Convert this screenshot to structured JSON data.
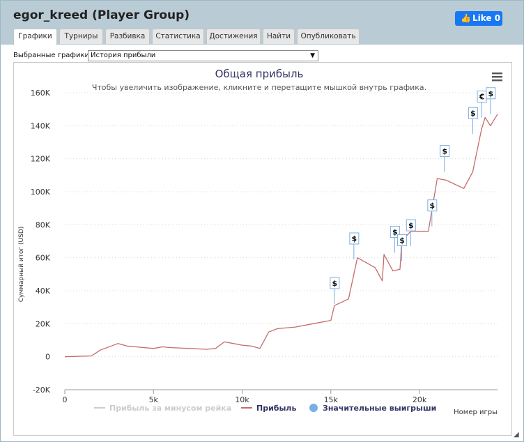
{
  "window": {
    "title": "egor_kreed (Player Group)",
    "like_label": "Like 0",
    "like_icon": "thumbs-up-icon",
    "brand_color": "#1877f2"
  },
  "tabs": [
    {
      "label": "Графики",
      "active": true
    },
    {
      "label": "Турниры"
    },
    {
      "label": "Разбивка"
    },
    {
      "label": "Статистика"
    },
    {
      "label": "Достижения"
    },
    {
      "label": "Найти"
    },
    {
      "label": "Опубликовать"
    }
  ],
  "selector": {
    "label": "Выбранные графики:",
    "value": "История прибыли"
  },
  "menu_icon": "hamburger-menu-icon",
  "chart_data": {
    "type": "line",
    "title": "Общая прибыль",
    "subtitle": "Чтобы увеличить изображение, кликните и перетащите мышкой внутрь графика.",
    "xlabel": "Номер игры",
    "ylabel": "Суммарный итог (USD)",
    "xlim": [
      0,
      24400
    ],
    "ylim": [
      -20000,
      160000
    ],
    "x_ticks": [
      0,
      5000,
      10000,
      15000,
      20000
    ],
    "x_tick_labels": [
      "0",
      "5k",
      "10k",
      "15k",
      "20k"
    ],
    "y_ticks": [
      -20000,
      0,
      20000,
      40000,
      60000,
      80000,
      100000,
      120000,
      140000,
      160000
    ],
    "y_tick_labels": [
      "-20K",
      "0",
      "20K",
      "40K",
      "60K",
      "80K",
      "100K",
      "120K",
      "140K",
      "160K"
    ],
    "grid": true,
    "legend_position": "bottom",
    "series": [
      {
        "name": "Прибыль за минусом рейка",
        "color": "#cccccc",
        "visible": false,
        "x": [],
        "y": []
      },
      {
        "name": "Прибыль",
        "color": "#c56b6b",
        "visible": true,
        "x": [
          0,
          1500,
          2000,
          3000,
          3500,
          4000,
          5000,
          5500,
          6000,
          7000,
          8000,
          8500,
          9000,
          9500,
          10000,
          10500,
          11000,
          11500,
          12000,
          13000,
          14000,
          15000,
          15200,
          16000,
          16500,
          17500,
          17900,
          18000,
          18500,
          18900,
          19000,
          19500,
          20500,
          21000,
          21500,
          22500,
          23000,
          23500,
          23700,
          24000,
          24400
        ],
        "y": [
          0,
          500,
          4000,
          8000,
          6500,
          6000,
          5000,
          6000,
          5500,
          5000,
          4500,
          5000,
          9000,
          8000,
          7000,
          6500,
          5000,
          15000,
          17000,
          18000,
          20000,
          22000,
          31000,
          35000,
          60000,
          54000,
          46000,
          62000,
          52000,
          53000,
          70000,
          76000,
          76000,
          108000,
          107000,
          102000,
          112000,
          138000,
          145000,
          140000,
          147000
        ]
      }
    ],
    "markers": [
      {
        "name": "Значительные выигрыши",
        "color": "#7aaee6",
        "points": [
          {
            "x": 15200,
            "y": 32000,
            "label": "$"
          },
          {
            "x": 16300,
            "y": 59000,
            "label": "$"
          },
          {
            "x": 18600,
            "y": 63000,
            "label": "$"
          },
          {
            "x": 19000,
            "y": 58000,
            "label": "$"
          },
          {
            "x": 19500,
            "y": 67000,
            "label": "$"
          },
          {
            "x": 20700,
            "y": 79000,
            "label": "$"
          },
          {
            "x": 21400,
            "y": 112000,
            "label": "$"
          },
          {
            "x": 23000,
            "y": 135000,
            "label": "$"
          },
          {
            "x": 23500,
            "y": 145000,
            "label": "€"
          },
          {
            "x": 24000,
            "y": 147000,
            "label": "$"
          }
        ]
      }
    ]
  }
}
